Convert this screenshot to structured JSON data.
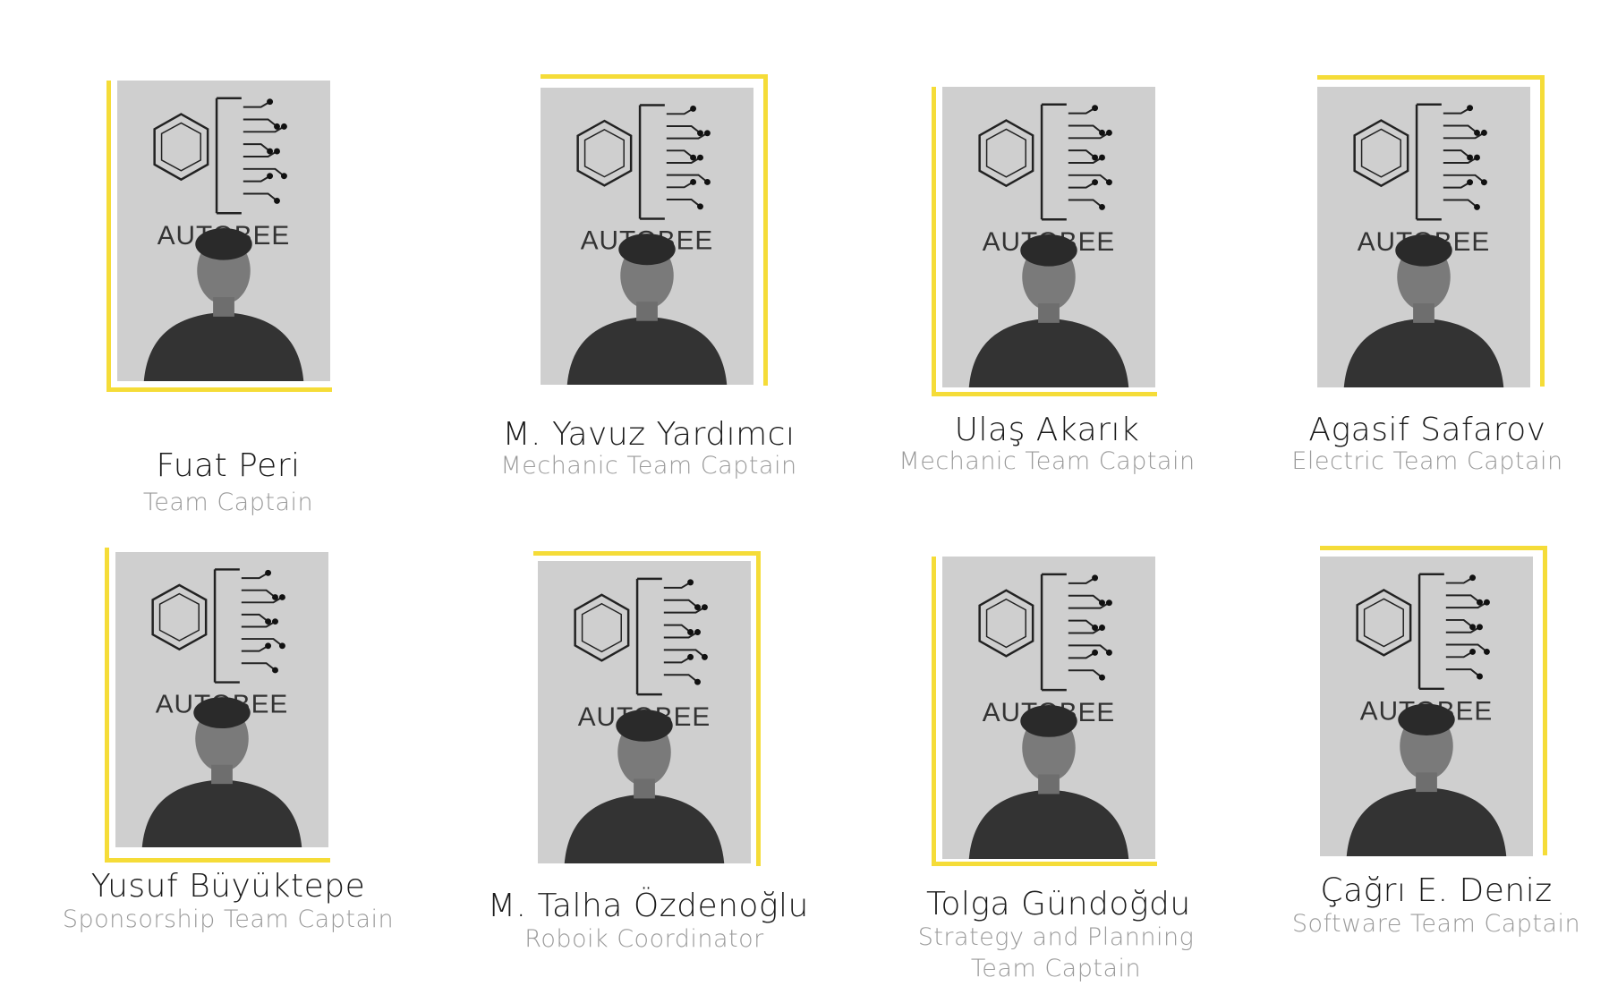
{
  "members": [
    {
      "name": "Fuat Peri",
      "role": "Team Captain",
      "logo_text": "AUTOBEE"
    },
    {
      "name": "M. Yavuz Yardımcı",
      "role": "Mechanic Team Captain",
      "logo_text": "AUTOBEE"
    },
    {
      "name": "Ulaş Akarık",
      "role": "Mechanic Team Captain",
      "logo_text": "AUTOBEE"
    },
    {
      "name": "Agasif  Safarov",
      "role": "Electric Team Captain",
      "logo_text": "AUTOBEE"
    },
    {
      "name": "Yusuf Büyüktepe",
      "role": "Sponsorship Team Captain",
      "logo_text": "AUTOBEE"
    },
    {
      "name": "M. Talha Özdenoğlu",
      "role": "Roboik Coordinator",
      "logo_text": "AUTOBEE"
    },
    {
      "name": "Tolga Gündoğdu",
      "role": "Strategy and Planning Team Captain",
      "logo_text": "AUTOBEE"
    },
    {
      "name": "Çağrı E. Deniz",
      "role": "Software Team Captain",
      "logo_text": "AUTOBEE"
    }
  ],
  "colors": {
    "accent": "#f5dc38",
    "name_text": "#1a1a1a",
    "role_text": "#9a9a9a"
  }
}
